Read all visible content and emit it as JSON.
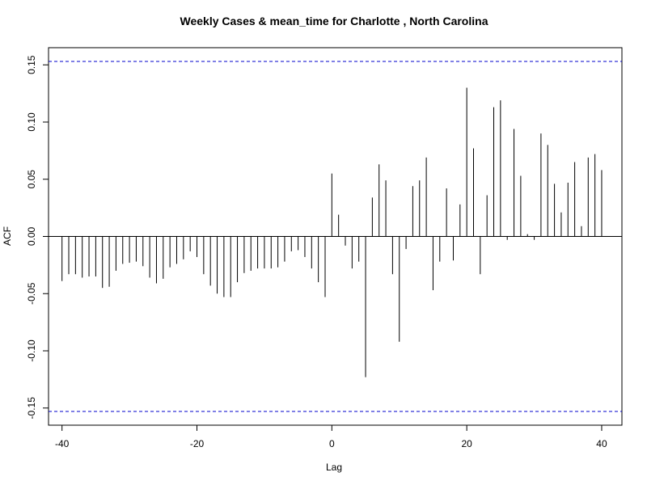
{
  "chart_data": {
    "type": "bar",
    "title": "Weekly Cases & mean_time for Charlotte , North Carolina",
    "xlabel": "Lag",
    "ylabel": "ACF",
    "xlim": [
      -42,
      43
    ],
    "ylim": [
      -0.165,
      0.165
    ],
    "xticks": [
      -40,
      -20,
      0,
      20,
      40
    ],
    "yticks": [
      -0.15,
      -0.1,
      -0.05,
      0.0,
      0.05,
      0.1,
      0.15
    ],
    "ytick_labels": [
      "-0.15",
      "-0.10",
      "-0.05",
      "0.00",
      "0.05",
      "0.10",
      "0.15"
    ],
    "confidence_bound": 0.153,
    "confidence_color": "#0000cc",
    "lags": [
      -40,
      -39,
      -38,
      -37,
      -36,
      -35,
      -34,
      -33,
      -32,
      -31,
      -30,
      -29,
      -28,
      -27,
      -26,
      -25,
      -24,
      -23,
      -22,
      -21,
      -20,
      -19,
      -18,
      -17,
      -16,
      -15,
      -14,
      -13,
      -12,
      -11,
      -10,
      -9,
      -8,
      -7,
      -6,
      -5,
      -4,
      -3,
      -2,
      -1,
      0,
      1,
      2,
      3,
      4,
      5,
      6,
      7,
      8,
      9,
      10,
      11,
      12,
      13,
      14,
      15,
      16,
      17,
      18,
      19,
      20,
      21,
      22,
      23,
      24,
      25,
      26,
      27,
      28,
      29,
      30,
      31,
      32,
      33,
      34,
      35,
      36,
      37,
      38,
      39,
      40
    ],
    "values": [
      -0.039,
      -0.033,
      -0.033,
      -0.036,
      -0.035,
      -0.035,
      -0.045,
      -0.044,
      -0.03,
      -0.024,
      -0.023,
      -0.022,
      -0.026,
      -0.036,
      -0.041,
      -0.037,
      -0.027,
      -0.024,
      -0.02,
      -0.013,
      -0.018,
      -0.033,
      -0.043,
      -0.05,
      -0.053,
      -0.053,
      -0.04,
      -0.032,
      -0.03,
      -0.028,
      -0.028,
      -0.028,
      -0.027,
      -0.022,
      -0.013,
      -0.012,
      -0.018,
      -0.028,
      -0.04,
      -0.053,
      0.055,
      0.019,
      -0.008,
      -0.028,
      -0.022,
      -0.123,
      0.034,
      0.063,
      0.049,
      -0.033,
      -0.092,
      -0.011,
      0.044,
      0.049,
      0.069,
      -0.047,
      -0.022,
      0.042,
      -0.021,
      0.028,
      0.13,
      0.077,
      -0.033,
      0.036,
      0.113,
      0.119,
      -0.003,
      0.094,
      0.053,
      0.002,
      -0.003,
      0.09,
      0.08,
      0.046,
      0.021,
      0.047,
      0.065,
      0.009,
      0.069,
      0.072,
      0.058
    ]
  }
}
